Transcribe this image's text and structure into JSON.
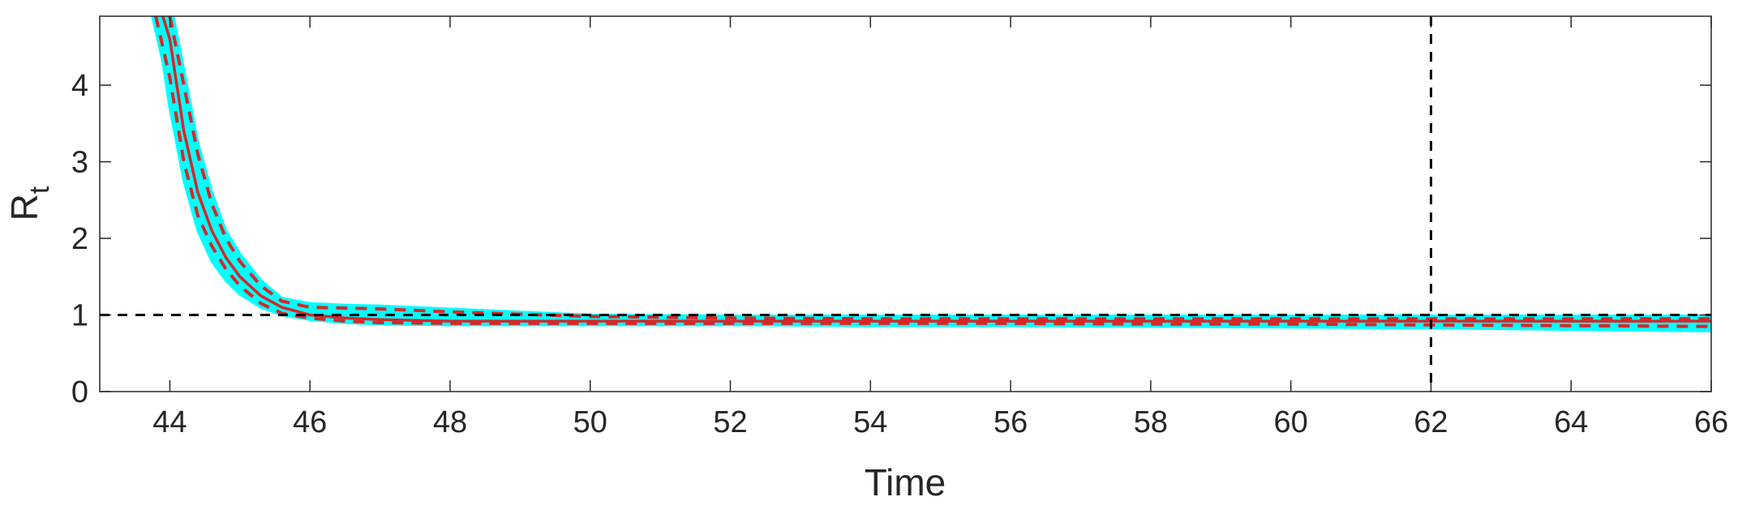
{
  "chart_data": {
    "type": "line",
    "title": "",
    "xlabel": "Time",
    "ylabel": "R",
    "ylabel_subscript": "t",
    "xlim": [
      43,
      66
    ],
    "ylim": [
      0,
      4.9
    ],
    "xticks": [
      44,
      46,
      48,
      50,
      52,
      54,
      56,
      58,
      60,
      62,
      64,
      66
    ],
    "yticks": [
      0,
      1,
      2,
      3,
      4
    ],
    "grid": false,
    "reference_lines": [
      {
        "orientation": "horizontal",
        "value": 1,
        "style": "dashed",
        "color": "#000000"
      },
      {
        "orientation": "vertical",
        "value": 62,
        "style": "dashed",
        "color": "#000000"
      }
    ],
    "series": [
      {
        "role": "mean",
        "style": "solid",
        "color": "#d62728",
        "x": [
          43.9,
          44.0,
          44.2,
          44.4,
          44.6,
          44.8,
          45.0,
          45.3,
          45.6,
          46.0,
          46.5,
          47,
          48,
          50,
          52,
          54,
          56,
          58,
          60,
          62,
          64,
          66
        ],
        "y": [
          4.9,
          4.6,
          3.4,
          2.6,
          2.1,
          1.75,
          1.5,
          1.25,
          1.1,
          1.0,
          0.96,
          0.94,
          0.92,
          0.92,
          0.92,
          0.92,
          0.92,
          0.92,
          0.92,
          0.92,
          0.92,
          0.92
        ]
      },
      {
        "role": "upper-bound",
        "style": "dashed",
        "color": "#d62728",
        "x": [
          44.0,
          44.2,
          44.4,
          44.6,
          44.8,
          45.0,
          45.3,
          45.6,
          46.0,
          46.5,
          47,
          48,
          50,
          52,
          54,
          56,
          58,
          60,
          62,
          64,
          66
        ],
        "y": [
          4.9,
          4.0,
          3.1,
          2.45,
          2.0,
          1.7,
          1.38,
          1.18,
          1.1,
          1.09,
          1.08,
          1.04,
          0.98,
          0.96,
          0.95,
          0.95,
          0.95,
          0.95,
          0.95,
          0.95,
          0.95
        ]
      },
      {
        "role": "lower-bound",
        "style": "dashed",
        "color": "#d62728",
        "x": [
          43.8,
          44.0,
          44.2,
          44.4,
          44.6,
          44.8,
          45.0,
          45.3,
          45.6,
          46.0,
          46.5,
          47,
          48,
          50,
          52,
          54,
          56,
          58,
          60,
          62,
          64,
          66
        ],
        "y": [
          4.9,
          4.1,
          3.0,
          2.3,
          1.9,
          1.6,
          1.38,
          1.15,
          1.02,
          0.96,
          0.92,
          0.9,
          0.89,
          0.89,
          0.89,
          0.89,
          0.89,
          0.88,
          0.88,
          0.87,
          0.86,
          0.85
        ]
      },
      {
        "role": "sample-envelope-upper",
        "style": "band",
        "color": "#00ffff",
        "x": [
          44.05,
          44.2,
          44.4,
          44.6,
          44.8,
          45.0,
          45.3,
          45.6,
          46.0,
          46.5,
          47,
          48,
          50,
          52,
          54,
          56,
          58,
          60,
          62,
          64,
          66
        ],
        "y": [
          4.9,
          4.2,
          3.25,
          2.6,
          2.1,
          1.8,
          1.45,
          1.22,
          1.15,
          1.13,
          1.12,
          1.08,
          1.0,
          0.99,
          0.99,
          0.99,
          0.99,
          0.99,
          0.99,
          0.99,
          0.99
        ]
      },
      {
        "role": "sample-envelope-lower",
        "style": "band",
        "color": "#00ffff",
        "x": [
          43.75,
          43.9,
          44.0,
          44.2,
          44.4,
          44.6,
          44.8,
          45.0,
          45.3,
          45.6,
          46.0,
          46.5,
          47,
          48,
          50,
          52,
          54,
          56,
          58,
          60,
          62,
          64,
          66
        ],
        "y": [
          4.9,
          4.3,
          3.7,
          2.75,
          2.1,
          1.7,
          1.45,
          1.27,
          1.1,
          1.0,
          0.94,
          0.9,
          0.88,
          0.87,
          0.87,
          0.87,
          0.86,
          0.86,
          0.85,
          0.84,
          0.83,
          0.81,
          0.79
        ]
      }
    ]
  }
}
